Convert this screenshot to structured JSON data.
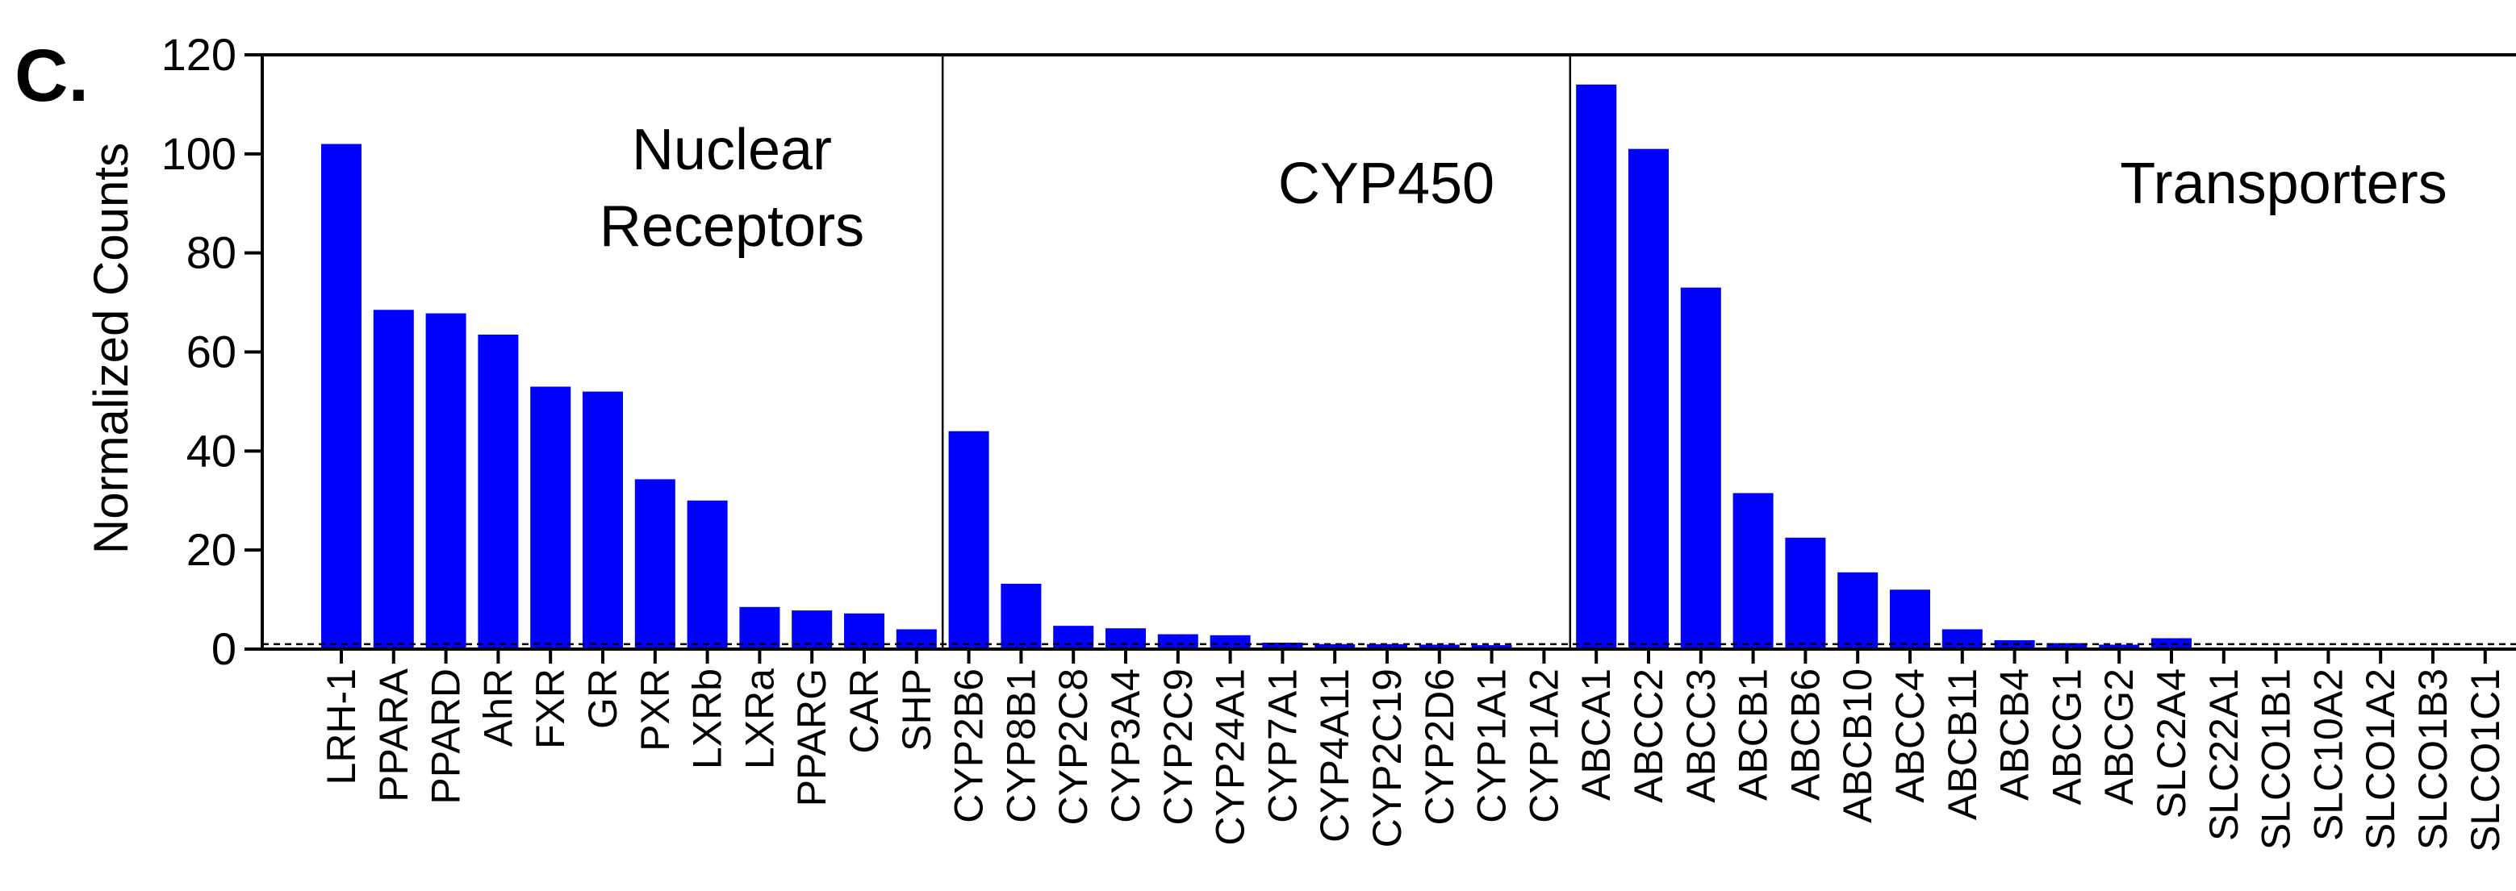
{
  "panel_label": "C.",
  "chart_data": {
    "type": "bar",
    "ylabel": "Normalized Counts",
    "xlabel": "",
    "ylim": [
      0,
      120
    ],
    "yticks": [
      0,
      20,
      40,
      60,
      80,
      100,
      120
    ],
    "threshold_line": 1,
    "bar_color": "#0000ff",
    "categories": [
      "LRH-1",
      "PPARA",
      "PPARD",
      "AhR",
      "FXR",
      "GR",
      "PXR",
      "LXRb",
      "LXRa",
      "PPARG",
      "CAR",
      "SHP",
      "CYP2B6",
      "CYP8B1",
      "CYP2C8",
      "CYP3A4",
      "CYP2C9",
      "CYP24A1",
      "CYP7A1",
      "CYP4A11",
      "CYP2C19",
      "CYP2D6",
      "CYP1A1",
      "CYP1A2",
      "ABCA1",
      "ABCC2",
      "ABCC3",
      "ABCB1",
      "ABCB6",
      "ABCB10",
      "ABCC4",
      "ABCB11",
      "ABCB4",
      "ABCG1",
      "ABCG2",
      "SLC2A4",
      "SLC22A1",
      "SLCO1B1",
      "SLC10A2",
      "SLCO1A2",
      "SLCO1B3",
      "SLCO1C1"
    ],
    "values": [
      102,
      68.5,
      67.8,
      63.5,
      53,
      52,
      34.3,
      30,
      8.5,
      7.8,
      7.2,
      4,
      44,
      13.2,
      4.7,
      4.2,
      3,
      2.8,
      1.3,
      1,
      1,
      0.9,
      0.8,
      0,
      114,
      101,
      73,
      31.5,
      22.5,
      15.5,
      12,
      4,
      1.8,
      1.2,
      0.9,
      2.2,
      0,
      0,
      0,
      0,
      0,
      0
    ],
    "groups": [
      {
        "label_lines": [
          "Nuclear",
          "Receptors"
        ],
        "start": 0,
        "end": 11
      },
      {
        "label_lines": [
          "CYP450"
        ],
        "start": 12,
        "end": 23
      },
      {
        "label_lines": [
          "Transporters"
        ],
        "start": 24,
        "end": 41
      }
    ]
  }
}
